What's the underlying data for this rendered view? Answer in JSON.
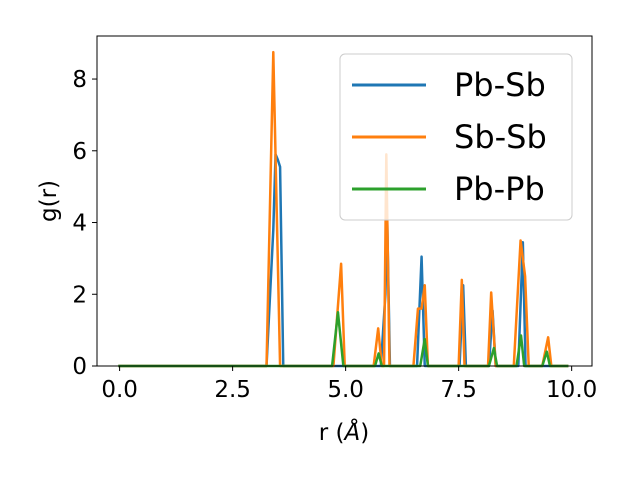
{
  "chart_data": {
    "type": "line",
    "xlabel": "r (",
    "xlabel_unit": "Å",
    "xlabel_close": ")",
    "ylabel": "g(r)",
    "xlim": [
      -0.5,
      10.45
    ],
    "ylim": [
      0,
      9.2
    ],
    "xticks": [
      0.0,
      2.5,
      5.0,
      7.5,
      10.0
    ],
    "xtick_labels": [
      "0.0",
      "2.5",
      "5.0",
      "7.5",
      "10.0"
    ],
    "yticks": [
      0,
      2,
      4,
      6,
      8
    ],
    "ytick_labels": [
      "0",
      "2",
      "4",
      "6",
      "8"
    ],
    "grid": false,
    "legend_position": "upper-right",
    "series": [
      {
        "name": "Pb-Sb",
        "color": "#1f77b4",
        "points": [
          [
            0,
            0
          ],
          [
            3.25,
            0
          ],
          [
            3.4,
            3.8
          ],
          [
            3.45,
            5.9
          ],
          [
            3.5,
            5.75
          ],
          [
            3.55,
            5.55
          ],
          [
            3.62,
            0
          ],
          [
            5.78,
            0
          ],
          [
            5.88,
            2.0
          ],
          [
            5.92,
            4.05
          ],
          [
            5.98,
            0
          ],
          [
            6.58,
            0
          ],
          [
            6.68,
            3.05
          ],
          [
            6.75,
            0
          ],
          [
            7.52,
            0
          ],
          [
            7.6,
            2.25
          ],
          [
            7.66,
            0
          ],
          [
            8.17,
            0
          ],
          [
            8.25,
            1.55
          ],
          [
            8.32,
            0
          ],
          [
            8.82,
            0
          ],
          [
            8.92,
            3.45
          ],
          [
            8.98,
            0
          ],
          [
            9.9,
            0
          ]
        ]
      },
      {
        "name": "Sb-Sb",
        "color": "#ff7f0e",
        "points": [
          [
            0,
            0
          ],
          [
            3.25,
            0
          ],
          [
            3.4,
            8.75
          ],
          [
            3.55,
            0
          ],
          [
            4.73,
            0
          ],
          [
            4.9,
            2.85
          ],
          [
            4.98,
            0
          ],
          [
            5.62,
            0
          ],
          [
            5.72,
            1.05
          ],
          [
            5.8,
            0
          ],
          [
            5.85,
            0
          ],
          [
            5.9,
            5.9
          ],
          [
            5.97,
            0
          ],
          [
            6.5,
            0
          ],
          [
            6.6,
            1.6
          ],
          [
            6.68,
            1.6
          ],
          [
            6.75,
            2.25
          ],
          [
            6.82,
            0
          ],
          [
            7.5,
            0
          ],
          [
            7.57,
            2.4
          ],
          [
            7.63,
            0
          ],
          [
            8.15,
            0
          ],
          [
            8.22,
            2.05
          ],
          [
            8.32,
            0
          ],
          [
            8.72,
            0
          ],
          [
            8.87,
            3.5
          ],
          [
            8.97,
            2.5
          ],
          [
            9.05,
            0
          ],
          [
            9.35,
            0
          ],
          [
            9.48,
            0.8
          ],
          [
            9.55,
            0
          ],
          [
            9.9,
            0
          ]
        ]
      },
      {
        "name": "Pb-Pb",
        "color": "#2ca02c",
        "points": [
          [
            0,
            0
          ],
          [
            4.7,
            0
          ],
          [
            4.83,
            1.5
          ],
          [
            4.95,
            0
          ],
          [
            5.65,
            0
          ],
          [
            5.73,
            0.35
          ],
          [
            5.8,
            0
          ],
          [
            6.65,
            0
          ],
          [
            6.75,
            0.75
          ],
          [
            6.82,
            0
          ],
          [
            8.17,
            0
          ],
          [
            8.28,
            0.5
          ],
          [
            8.35,
            0
          ],
          [
            8.78,
            0
          ],
          [
            8.88,
            0.85
          ],
          [
            8.95,
            0
          ],
          [
            9.35,
            0
          ],
          [
            9.45,
            0.4
          ],
          [
            9.52,
            0
          ],
          [
            9.9,
            0
          ]
        ]
      }
    ]
  }
}
